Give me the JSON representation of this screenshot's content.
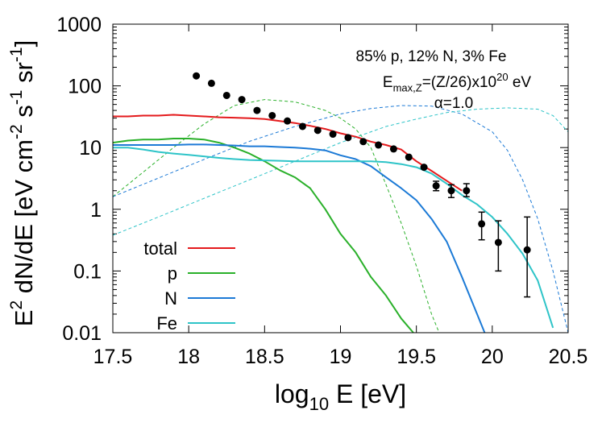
{
  "chart_data": {
    "type": "line",
    "title": "",
    "xlabel": {
      "pre": "log",
      "sub": "10",
      "post": " E [eV]"
    },
    "ylabel": {
      "parts": [
        {
          "t": "E",
          "s": "n"
        },
        {
          "t": "2",
          "s": "sup"
        },
        {
          "t": " dN/dE [eV cm",
          "s": "n"
        },
        {
          "t": "-2",
          "s": "sup"
        },
        {
          "t": " s",
          "s": "n"
        },
        {
          "t": "-1",
          "s": "sup"
        },
        {
          "t": " sr",
          "s": "n"
        },
        {
          "t": "-1",
          "s": "sup"
        },
        {
          "t": "]",
          "s": "n"
        }
      ]
    },
    "xlim": [
      17.5,
      20.5
    ],
    "ylim": [
      0.01,
      1000
    ],
    "yscale": "log",
    "xticks": [
      {
        "v": 17.5,
        "label": "17.5"
      },
      {
        "v": 18,
        "label": "18"
      },
      {
        "v": 18.5,
        "label": "18.5"
      },
      {
        "v": 19,
        "label": "19"
      },
      {
        "v": 19.5,
        "label": "19.5"
      },
      {
        "v": 20,
        "label": "20"
      },
      {
        "v": 20.5,
        "label": "20.5"
      }
    ],
    "yticks": [
      {
        "v": 0.01,
        "label": "0.01"
      },
      {
        "v": 0.1,
        "label": "0.1"
      },
      {
        "v": 1,
        "label": "1"
      },
      {
        "v": 10,
        "label": "10"
      },
      {
        "v": 100,
        "label": "100"
      },
      {
        "v": 1000,
        "label": "1000"
      }
    ],
    "annotations": [
      {
        "id": "composition",
        "parts": [
          {
            "t": "85% p, 12% N, 3% Fe",
            "s": "n"
          }
        ]
      },
      {
        "id": "emax",
        "parts": [
          {
            "t": "E",
            "s": "n"
          },
          {
            "t": "max,Z",
            "s": "sub"
          },
          {
            "t": "=(Z/26)x10",
            "s": "n"
          },
          {
            "t": "20",
            "s": "sup"
          },
          {
            "t": " eV",
            "s": "n"
          }
        ]
      },
      {
        "id": "alpha",
        "parts": [
          {
            "t": "α=1.0",
            "s": "n"
          }
        ]
      }
    ],
    "legend": {
      "position": "bottom-left"
    },
    "series": [
      {
        "name": "total",
        "color": "#e41a1c",
        "style": "solid",
        "legend": true,
        "x": [
          17.5,
          17.6,
          17.7,
          17.8,
          17.9,
          18.0,
          18.1,
          18.2,
          18.3,
          18.4,
          18.5,
          18.6,
          18.7,
          18.8,
          18.9,
          19.0,
          19.1,
          19.2,
          19.3,
          19.4,
          19.5,
          19.6,
          19.7,
          19.8
        ],
        "y": [
          32,
          32,
          33,
          33,
          34,
          33,
          32,
          31,
          30.5,
          30,
          29,
          27,
          25,
          22.5,
          20,
          17,
          15,
          12.5,
          11,
          9.3,
          6,
          4.2,
          2.9,
          2.0
        ]
      },
      {
        "name": "p",
        "color": "#2ab02a",
        "style": "solid",
        "legend": true,
        "x": [
          17.5,
          17.6,
          17.7,
          17.8,
          17.9,
          18.0,
          18.1,
          18.2,
          18.3,
          18.4,
          18.5,
          18.6,
          18.7,
          18.8,
          18.9,
          19.0,
          19.1,
          19.2,
          19.3,
          19.4,
          19.48
        ],
        "y": [
          12,
          13,
          13.5,
          13.5,
          14,
          14,
          13.5,
          12,
          10,
          8,
          6,
          4.3,
          3.3,
          2.2,
          1.0,
          0.4,
          0.2,
          0.08,
          0.04,
          0.017,
          0.01
        ]
      },
      {
        "name": "N",
        "color": "#1c7ad6",
        "style": "solid",
        "legend": true,
        "x": [
          17.5,
          17.6,
          17.7,
          17.8,
          17.9,
          18.0,
          18.1,
          18.2,
          18.3,
          18.4,
          18.5,
          18.6,
          18.7,
          18.8,
          18.9,
          19.0,
          19.1,
          19.2,
          19.3,
          19.4,
          19.5,
          19.6,
          19.7,
          19.8,
          19.9,
          19.95
        ],
        "y": [
          11,
          11,
          11,
          11,
          11,
          11.2,
          11.2,
          11,
          10.8,
          10.5,
          10.5,
          10.2,
          10,
          9.6,
          9.0,
          7.5,
          6.5,
          5.0,
          3.3,
          2.2,
          1.4,
          0.7,
          0.3,
          0.08,
          0.02,
          0.01
        ]
      },
      {
        "name": "Fe",
        "color": "#2ec4c8",
        "style": "solid",
        "legend": true,
        "x": [
          17.5,
          17.6,
          17.7,
          17.8,
          17.9,
          18.0,
          18.1,
          18.2,
          18.3,
          18.4,
          18.5,
          18.6,
          18.7,
          18.8,
          18.9,
          19.0,
          19.1,
          19.2,
          19.3,
          19.4,
          19.5,
          19.6,
          19.7,
          19.8,
          19.9,
          20.0,
          20.1,
          20.2,
          20.3,
          20.4
        ],
        "y": [
          10,
          10,
          9.3,
          8.5,
          8,
          7.6,
          7.2,
          6.8,
          6.5,
          6.3,
          6.2,
          6.1,
          6.0,
          6.0,
          6.0,
          6.0,
          6.0,
          6.0,
          5.8,
          5.4,
          4.8,
          3.8,
          2.6,
          1.7,
          1.2,
          0.75,
          0.4,
          0.19,
          0.07,
          0.012
        ]
      },
      {
        "name": "p-source",
        "color": "#2ab02a",
        "style": "dashed",
        "legend": false,
        "x": [
          17.5,
          17.7,
          17.9,
          18.1,
          18.3,
          18.5,
          18.7,
          18.9,
          19.0,
          19.1,
          19.2,
          19.3,
          19.4,
          19.5,
          19.6,
          19.65
        ],
        "y": [
          1.6,
          4,
          10,
          24,
          48,
          60,
          55,
          40,
          30,
          20,
          10,
          2.5,
          0.6,
          0.12,
          0.02,
          0.01
        ]
      },
      {
        "name": "N-source",
        "color": "#1c7ad6",
        "style": "dashed",
        "legend": false,
        "x": [
          17.5,
          17.8,
          18.1,
          18.4,
          18.7,
          19.0,
          19.2,
          19.4,
          19.6,
          19.8,
          20.0,
          20.1,
          20.2,
          20.3,
          20.4,
          20.5
        ],
        "y": [
          1.6,
          3.2,
          6.4,
          12.6,
          22,
          35,
          43,
          48,
          47,
          35,
          18,
          9,
          3,
          0.7,
          0.1,
          0.01
        ]
      },
      {
        "name": "Fe-source",
        "color": "#2ec4c8",
        "style": "dashed",
        "legend": false,
        "x": [
          17.5,
          17.8,
          18.1,
          18.4,
          18.7,
          19.0,
          19.3,
          19.5,
          19.7,
          19.9,
          20.1,
          20.3,
          20.4,
          20.5
        ],
        "y": [
          0.38,
          0.75,
          1.5,
          3.0,
          6.0,
          12,
          22,
          29,
          37,
          42,
          44,
          42,
          33,
          18
        ]
      }
    ],
    "points": [
      {
        "x": 18.05,
        "y": 145
      },
      {
        "x": 18.15,
        "y": 110
      },
      {
        "x": 18.25,
        "y": 70
      },
      {
        "x": 18.35,
        "y": 60
      },
      {
        "x": 18.45,
        "y": 40
      },
      {
        "x": 18.55,
        "y": 33
      },
      {
        "x": 18.65,
        "y": 27
      },
      {
        "x": 18.75,
        "y": 22
      },
      {
        "x": 18.85,
        "y": 19
      },
      {
        "x": 18.95,
        "y": 16.5
      },
      {
        "x": 19.05,
        "y": 14.5
      },
      {
        "x": 19.15,
        "y": 12.5
      },
      {
        "x": 19.25,
        "y": 11
      },
      {
        "x": 19.35,
        "y": 9.5
      },
      {
        "x": 19.45,
        "y": 7
      },
      {
        "x": 19.55,
        "y": 4.8
      },
      {
        "x": 19.63,
        "y": 2.4,
        "lo": 2.0,
        "hi": 2.85
      },
      {
        "x": 19.73,
        "y": 2.0,
        "lo": 1.55,
        "hi": 2.5
      },
      {
        "x": 19.83,
        "y": 2.0,
        "lo": 1.6,
        "hi": 2.6
      },
      {
        "x": 19.93,
        "y": 0.58,
        "lo": 0.32,
        "hi": 0.9
      },
      {
        "x": 20.04,
        "y": 0.29,
        "lo": 0.1,
        "hi": 0.65
      },
      {
        "x": 20.23,
        "y": 0.22,
        "lo": 0.038,
        "hi": 0.75
      }
    ]
  }
}
